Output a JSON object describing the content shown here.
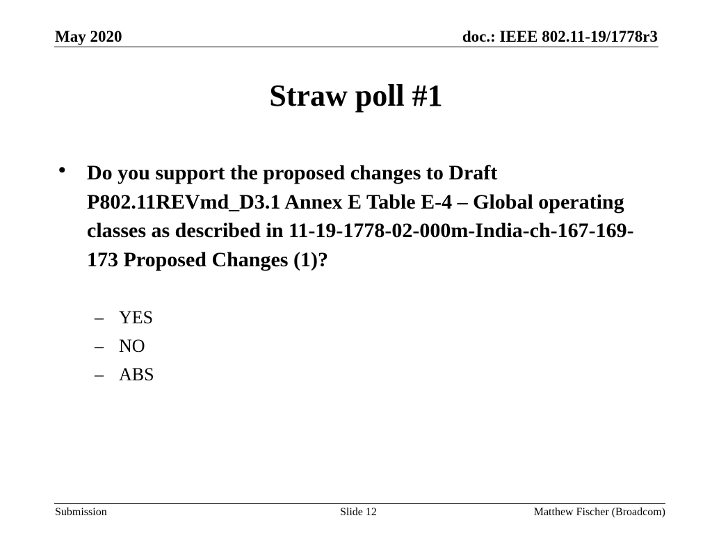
{
  "header": {
    "date": "May 2020",
    "doc_id": "doc.: IEEE 802.11-19/1778r3"
  },
  "slide": {
    "title": "Straw poll #1",
    "bullet_glyph": "•",
    "question": "Do you support the proposed changes to Draft P802.11REVmd_D3.1 Annex E Table E-4 – Global operating classes as described in 11-19-1778-02-000m-India-ch-167-169-173 Proposed Changes (1)?",
    "dash_glyph": "–",
    "options": [
      "YES",
      "NO",
      "ABS"
    ]
  },
  "footer": {
    "left": "Submission",
    "center": "Slide 12",
    "right": "Matthew Fischer (Broadcom)"
  }
}
